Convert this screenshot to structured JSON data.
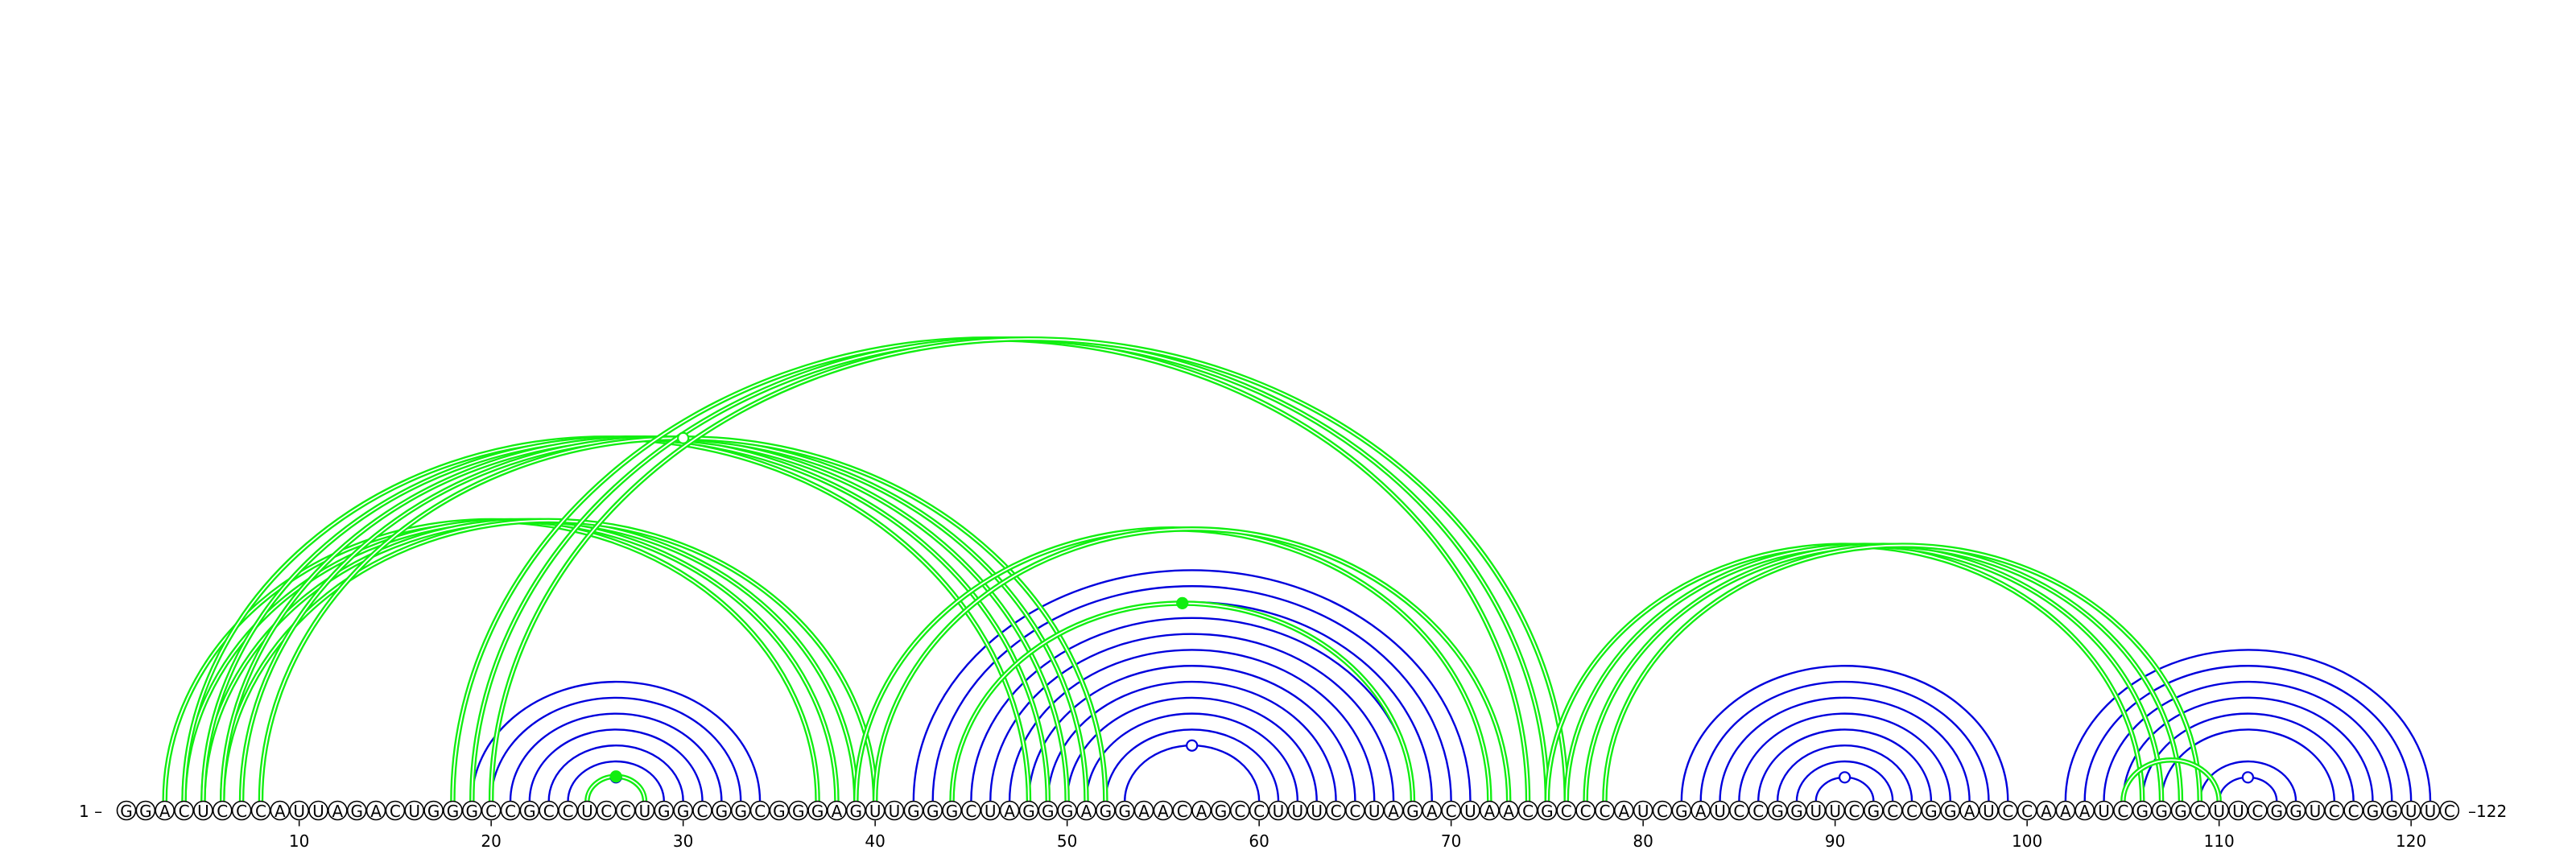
{
  "sequence": "GGACUCCCAUUAGACUGGGCCGCCUCCUGGCGGCGGGAGUUGGGCUAGGGAGGAACAGCCUUUCCUAGACUAACGCCCAUCGAUCCGGUUCGCCGGAUCCAAAUCGGGCUUCGGUCCGGUUC",
  "start_label": "1 –",
  "end_label": "–122",
  "tick_labels": [
    "10",
    "20",
    "30",
    "40",
    "50",
    "60",
    "70",
    "80",
    "90",
    "100",
    "110",
    "120"
  ],
  "colors": {
    "blue": "#0000dd",
    "green": "#11ee11",
    "outline": "#000000"
  },
  "helices": [
    {
      "color": "blue",
      "pairs": [
        [
          19,
          34
        ],
        [
          20,
          33
        ],
        [
          21,
          32
        ],
        [
          22,
          31
        ],
        [
          23,
          30
        ],
        [
          24,
          29
        ],
        [
          25,
          28
        ]
      ],
      "marker": "hollow"
    },
    {
      "color": "blue",
      "pairs": [
        [
          42,
          71
        ],
        [
          43,
          70
        ],
        [
          44,
          69
        ],
        [
          45,
          68
        ],
        [
          46,
          67
        ],
        [
          47,
          66
        ],
        [
          48,
          65
        ],
        [
          49,
          64
        ],
        [
          50,
          63
        ],
        [
          51,
          62
        ],
        [
          52,
          61
        ],
        [
          53,
          60
        ]
      ],
      "marker": "hollow"
    },
    {
      "color": "blue",
      "pairs": [
        [
          82,
          99
        ],
        [
          83,
          98
        ],
        [
          84,
          97
        ],
        [
          85,
          96
        ],
        [
          86,
          95
        ],
        [
          87,
          94
        ],
        [
          88,
          93
        ],
        [
          89,
          92
        ]
      ],
      "marker": "hollow"
    },
    {
      "color": "blue",
      "pairs": [
        [
          102,
          121
        ],
        [
          103,
          120
        ],
        [
          104,
          119
        ],
        [
          105,
          118
        ],
        [
          106,
          117
        ],
        [
          107,
          116
        ],
        [
          109,
          114
        ],
        [
          110,
          113
        ]
      ],
      "marker": "hollow"
    },
    {
      "color": "green",
      "pairs": [
        [
          25,
          28
        ]
      ],
      "marker": "filled"
    },
    {
      "color": "green",
      "pairs": [
        [
          3,
          37
        ],
        [
          4,
          38
        ],
        [
          5,
          39
        ],
        [
          6,
          40
        ]
      ],
      "marker": "none"
    },
    {
      "color": "green",
      "pairs": [
        [
          4,
          48
        ],
        [
          5,
          49
        ],
        [
          6,
          50
        ],
        [
          7,
          51
        ],
        [
          8,
          52
        ]
      ],
      "marker": "hollow"
    },
    {
      "color": "green",
      "pairs": [
        [
          18,
          74
        ],
        [
          19,
          75
        ],
        [
          20,
          76
        ]
      ],
      "marker": "none"
    },
    {
      "color": "green",
      "pairs": [
        [
          39,
          72
        ],
        [
          40,
          73
        ]
      ],
      "marker": "none"
    },
    {
      "color": "green",
      "pairs": [
        [
          44,
          68
        ]
      ],
      "marker": "filled"
    },
    {
      "color": "green",
      "pairs": [
        [
          75,
          106
        ],
        [
          76,
          107
        ],
        [
          77,
          108
        ],
        [
          78,
          109
        ]
      ],
      "marker": "none"
    },
    {
      "color": "green",
      "pairs": [
        [
          105,
          110
        ]
      ],
      "marker": "none"
    }
  ]
}
